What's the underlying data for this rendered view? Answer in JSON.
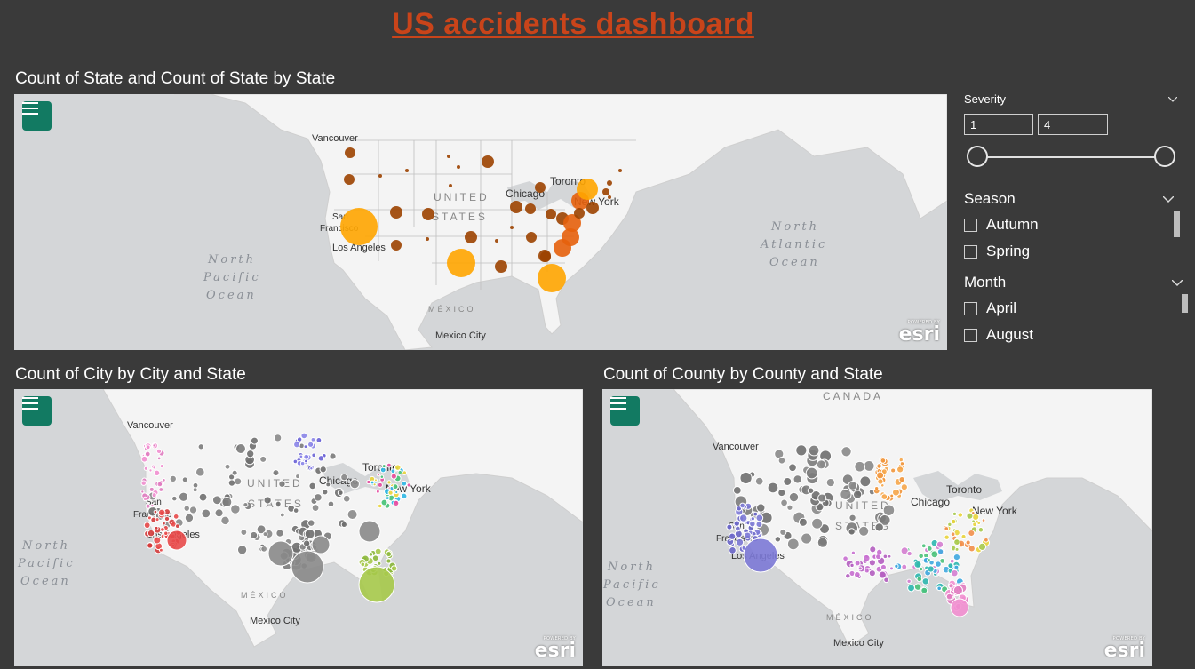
{
  "dashboard": {
    "title": "US accidents dashboard"
  },
  "visuals": {
    "state_map": {
      "title": "Count of State and Count of State by State"
    },
    "city_map": {
      "title": "Count of City by City and State"
    },
    "county_map": {
      "title": "Count of County by County and State"
    }
  },
  "map_labels": {
    "vancouver": "Vancouver",
    "san": "San",
    "francisco": "Francisco",
    "los_angeles": "Los Angeles",
    "chicago": "Chicago",
    "toronto": "Toronto",
    "new_york": "New York",
    "united": "UNITED",
    "states": "STATES",
    "mexico": "MÉXICO",
    "mexico_city": "Mexico City",
    "north": "North",
    "pacific": "Pacific",
    "atlantic": "Atlantic",
    "ocean": "Ocean",
    "canada": "CANADA",
    "esri": "esri",
    "powered_by": "POWERED BY"
  },
  "severity_slicer": {
    "label": "Severity",
    "min_value": "1",
    "max_value": "4",
    "range": [
      1,
      4
    ]
  },
  "season_slicer": {
    "label": "Season",
    "items": [
      "Autumn",
      "Spring"
    ]
  },
  "month_slicer": {
    "label": "Month",
    "items": [
      "April",
      "August"
    ]
  },
  "colors": {
    "title": "#c9441a",
    "background": "#3a3a3a",
    "menu_button": "#127a62",
    "map_water": "#d4d6d8",
    "map_land": "#f4f4f4",
    "bubble_dark": "#9c4200",
    "bubble_mid": "#e6600c",
    "bubble_light": "#ffa500"
  }
}
